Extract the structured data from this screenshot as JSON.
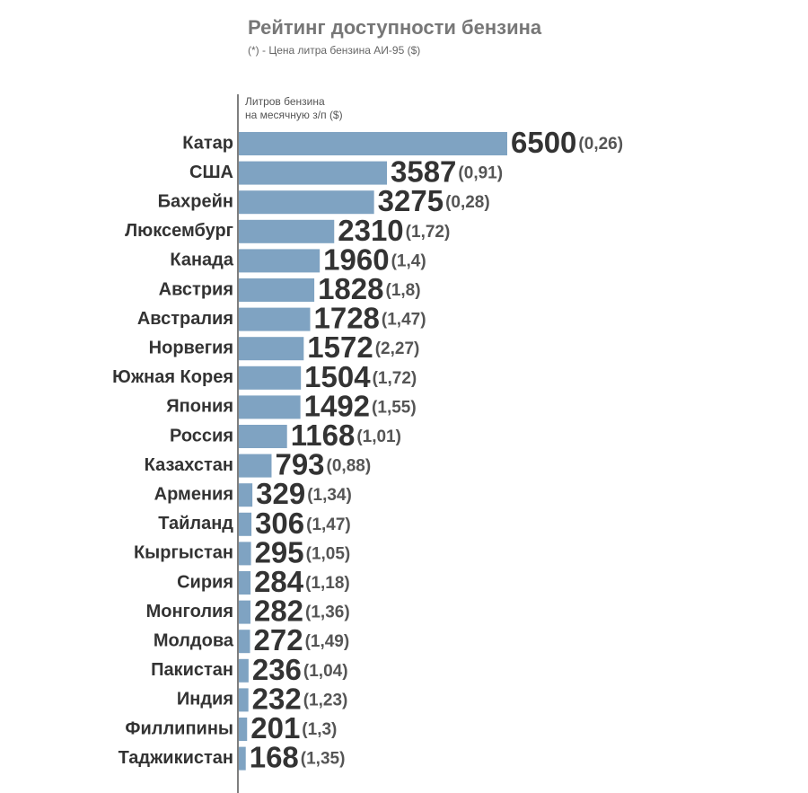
{
  "chart_data": {
    "type": "hbar",
    "title": "Рейтинг доступности бензина",
    "subtitle": "(*) - Цена литра бензина АИ-95 ($)",
    "axis_label_lines": [
      "Литров бензина",
      "на месячную з/п ($)"
    ],
    "categories": [
      "Катар",
      "США",
      "Бахрейн",
      "Люксембург",
      "Канада",
      "Австрия",
      "Австралия",
      "Норвегия",
      "Южная Корея",
      "Япония",
      "Россия",
      "Казахстан",
      "Армения",
      "Тайланд",
      "Кыргыстан",
      "Сирия",
      "Монголия",
      "Молдова",
      "Пакистан",
      "Индия",
      "Филлипины",
      "Таджикистан"
    ],
    "values": [
      6500,
      3587,
      3275,
      2310,
      1960,
      1828,
      1728,
      1572,
      1504,
      1492,
      1168,
      793,
      329,
      306,
      295,
      284,
      282,
      272,
      236,
      232,
      201,
      168
    ],
    "price_labels": [
      "(0,26)",
      "(0,91)",
      "(0,28)",
      "(1,72)",
      "(1,4)",
      "(1,8)",
      "(1,47)",
      "(2,27)",
      "(1,72)",
      "(1,55)",
      "(1,01)",
      "(0,88)",
      "(1,34)",
      "(1,47)",
      "(1,05)",
      "(1,18)",
      "(1,36)",
      "(1,49)",
      "(1,04)",
      "(1,23)",
      "(1,3)",
      "(1,35)"
    ],
    "color": "#7fa3c2",
    "xlim": [
      0,
      6500
    ]
  }
}
